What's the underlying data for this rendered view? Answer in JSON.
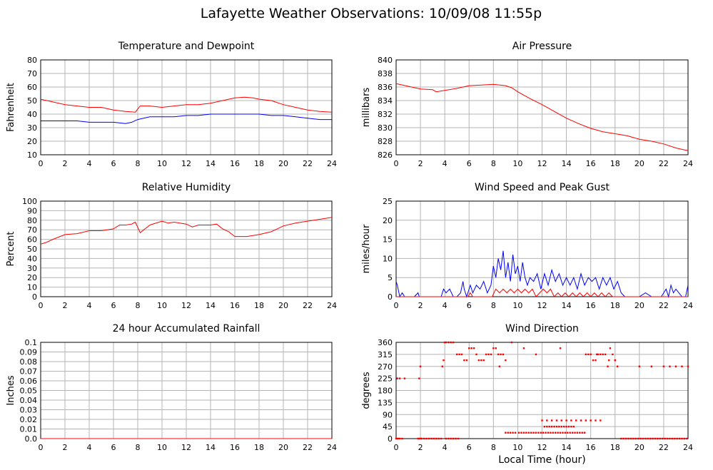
{
  "page": {
    "title": "Lafayette Weather Observations: 10/09/08 11:55p"
  },
  "colors": {
    "red": "#ff0000",
    "blue": "#0000ff",
    "grid": "#b4b4b4",
    "axis": "#000000"
  },
  "chart_data": [
    {
      "id": "temp",
      "type": "line",
      "title": "Temperature and Dewpoint",
      "xlabel": "",
      "ylabel": "Fahrenheit",
      "xlim": [
        0,
        24
      ],
      "ylim": [
        10,
        80
      ],
      "xticks": [
        0,
        2,
        4,
        6,
        8,
        10,
        12,
        14,
        16,
        18,
        20,
        22,
        24
      ],
      "yticks": [
        10,
        20,
        30,
        40,
        50,
        60,
        70,
        80
      ],
      "ytick_labels": [
        "10",
        "20",
        "30",
        "40",
        "50",
        "60",
        "70",
        "80"
      ],
      "grid": true,
      "series": [
        {
          "color": "#ff0000",
          "x": [
            0,
            1,
            2,
            3,
            4,
            5,
            6,
            7,
            7.8,
            8.2,
            9,
            10,
            11,
            12,
            13,
            14,
            15,
            16,
            16.8,
            17.5,
            18,
            19,
            20,
            21,
            22,
            23,
            24
          ],
          "y": [
            51,
            49,
            47,
            46,
            45,
            45,
            43,
            42,
            41.5,
            46,
            46,
            45,
            46,
            47,
            47,
            48,
            50,
            52,
            52.5,
            52,
            51,
            50,
            47,
            45,
            43,
            42,
            41.5
          ]
        },
        {
          "color": "#0000ff",
          "x": [
            0,
            1,
            2,
            3,
            4,
            5,
            6,
            7,
            7.5,
            8,
            9,
            10,
            11,
            12,
            13,
            14,
            15,
            16,
            17,
            18,
            19,
            20,
            21,
            22,
            23,
            24
          ],
          "y": [
            35,
            35,
            35,
            35,
            34,
            34,
            34,
            33,
            34,
            36,
            38,
            38,
            38,
            39,
            39,
            40,
            40,
            40,
            40,
            40,
            39,
            39,
            38,
            37,
            36,
            36
          ]
        }
      ]
    },
    {
      "id": "pressure",
      "type": "line",
      "title": "Air Pressure",
      "xlabel": "",
      "ylabel": "millibars",
      "xlim": [
        0,
        24
      ],
      "ylim": [
        826,
        840
      ],
      "xticks": [
        0,
        2,
        4,
        6,
        8,
        10,
        12,
        14,
        16,
        18,
        20,
        22,
        24
      ],
      "yticks": [
        826,
        828,
        830,
        832,
        834,
        836,
        838,
        840
      ],
      "ytick_labels": [
        "826",
        "828",
        "830",
        "832",
        "834",
        "836",
        "838",
        "840"
      ],
      "grid": true,
      "series": [
        {
          "color": "#ff0000",
          "x": [
            0,
            1,
            2,
            3,
            3.3,
            4,
            5,
            6,
            7,
            8,
            9,
            9.5,
            10,
            11,
            12,
            13,
            14,
            15,
            16,
            17,
            18,
            19,
            20,
            21,
            22,
            23,
            24
          ],
          "y": [
            836.5,
            836.1,
            835.7,
            835.6,
            835.3,
            835.5,
            835.8,
            836.2,
            836.3,
            836.4,
            836.2,
            835.9,
            835.3,
            834.3,
            833.4,
            832.4,
            831.4,
            830.6,
            829.9,
            829.4,
            829.1,
            828.8,
            828.3,
            828.0,
            827.6,
            827.0,
            826.6
          ]
        }
      ]
    },
    {
      "id": "humidity",
      "type": "line",
      "title": "Relative Humidity",
      "xlabel": "",
      "ylabel": "Percent",
      "xlim": [
        0,
        24
      ],
      "ylim": [
        0,
        100
      ],
      "xticks": [
        0,
        2,
        4,
        6,
        8,
        10,
        12,
        14,
        16,
        18,
        20,
        22,
        24
      ],
      "yticks": [
        0,
        10,
        20,
        30,
        40,
        50,
        60,
        70,
        80,
        90,
        100
      ],
      "ytick_labels": [
        "0",
        "10",
        "20",
        "30",
        "40",
        "50",
        "60",
        "70",
        "80",
        "90",
        "100"
      ],
      "grid": true,
      "series": [
        {
          "color": "#ff0000",
          "x": [
            0,
            0.5,
            1,
            2,
            3,
            4,
            5,
            6,
            6.5,
            7,
            7.5,
            7.8,
            8.2,
            8.6,
            9,
            10,
            10.5,
            11,
            12,
            12.5,
            13,
            14,
            14.5,
            15,
            15.5,
            16,
            17,
            18,
            19,
            20,
            21,
            22,
            23,
            24
          ],
          "y": [
            55,
            57,
            60,
            65,
            66,
            69,
            69,
            71,
            75,
            75,
            76,
            78,
            67,
            71,
            75,
            79,
            77,
            78,
            76,
            73,
            75,
            75,
            76,
            71,
            68,
            63,
            63,
            65,
            68,
            74,
            77,
            79,
            81,
            83
          ]
        }
      ]
    },
    {
      "id": "wind",
      "type": "line",
      "title": "Wind Speed and Peak Gust",
      "xlabel": "",
      "ylabel": "miles/hour",
      "xlim": [
        0,
        24
      ],
      "ylim": [
        0,
        25
      ],
      "xticks": [
        0,
        2,
        4,
        6,
        8,
        10,
        12,
        14,
        16,
        18,
        20,
        22,
        24
      ],
      "yticks": [
        0,
        5,
        10,
        15,
        20,
        25
      ],
      "ytick_labels": [
        "0",
        "5",
        "10",
        "15",
        "20",
        "25"
      ],
      "grid": true,
      "series": [
        {
          "color": "#0000ff",
          "x": [
            0,
            0.1,
            0.3,
            0.5,
            0.7,
            1,
            1.5,
            1.8,
            1.9,
            2,
            3,
            3.7,
            3.9,
            4.1,
            4.4,
            4.7,
            5,
            5.3,
            5.5,
            5.6,
            5.8,
            6.1,
            6.3,
            6.6,
            6.9,
            7.2,
            7.5,
            7.8,
            8,
            8.2,
            8.4,
            8.6,
            8.8,
            9,
            9.2,
            9.4,
            9.6,
            9.8,
            10,
            10.2,
            10.4,
            10.6,
            10.8,
            11,
            11.3,
            11.6,
            11.9,
            12.2,
            12.5,
            12.8,
            13.1,
            13.4,
            13.7,
            14,
            14.3,
            14.6,
            14.9,
            15.2,
            15.5,
            15.8,
            16.1,
            16.4,
            16.7,
            17,
            17.3,
            17.6,
            17.9,
            18.2,
            18.5,
            18.8,
            19,
            20,
            20.5,
            21,
            21.5,
            21.8,
            22,
            22.2,
            22.4,
            22.6,
            22.8,
            23,
            23.5,
            23.8,
            24
          ],
          "y": [
            4,
            3,
            0,
            1,
            0,
            0,
            0,
            1,
            0,
            0,
            0,
            0,
            2,
            1,
            2,
            0,
            0,
            1,
            4,
            2,
            0,
            3,
            1,
            3,
            2,
            4,
            1,
            3,
            8,
            5,
            10,
            7,
            12,
            5,
            9,
            4,
            11,
            6,
            8,
            4,
            9,
            5,
            3,
            5,
            4,
            6,
            2,
            6,
            3,
            7,
            4,
            6,
            3,
            5,
            3,
            5,
            2,
            6,
            3,
            5,
            4,
            5,
            2,
            5,
            3,
            5,
            2,
            4,
            1,
            0,
            0,
            0,
            1,
            0,
            0,
            0,
            1,
            2,
            0,
            3,
            1,
            2,
            0,
            0,
            3
          ]
        },
        {
          "color": "#ff0000",
          "x": [
            0,
            5.9,
            6.1,
            6.3,
            7.9,
            8.2,
            8.5,
            8.8,
            9.1,
            9.4,
            9.7,
            10,
            10.3,
            10.6,
            10.9,
            11.2,
            11.5,
            11.8,
            12.1,
            12.4,
            12.7,
            13,
            13.3,
            13.6,
            13.9,
            14.2,
            14.5,
            14.8,
            15.1,
            15.4,
            15.7,
            16,
            16.3,
            16.6,
            16.9,
            17.2,
            17.5,
            17.8,
            18,
            24
          ],
          "y": [
            0,
            0,
            1,
            0,
            0,
            2,
            1,
            2,
            1,
            2,
            1,
            2,
            1,
            2,
            1,
            2,
            0,
            1,
            2,
            1,
            2,
            0,
            1,
            0,
            1,
            0,
            1,
            0,
            1,
            0,
            1,
            0,
            1,
            0,
            1,
            0,
            1,
            0,
            0,
            0
          ]
        }
      ]
    },
    {
      "id": "rain",
      "type": "line",
      "title": "24 hour Accumulated Rainfall",
      "xlabel": "",
      "ylabel": "Inches",
      "xlim": [
        0,
        24
      ],
      "ylim": [
        0,
        0.1
      ],
      "xticks": [
        0,
        2,
        4,
        6,
        8,
        10,
        12,
        14,
        16,
        18,
        20,
        22,
        24
      ],
      "yticks": [
        0,
        0.01,
        0.02,
        0.03,
        0.04,
        0.05,
        0.06,
        0.07,
        0.08,
        0.09,
        0.1
      ],
      "ytick_labels": [
        "0.0",
        "0.01",
        "0.02",
        "0.03",
        "0.04",
        "0.05",
        "0.06",
        "0.07",
        "0.08",
        "0.09",
        "0.1"
      ],
      "grid": true,
      "series": [
        {
          "color": "#ff0000",
          "x": [
            0,
            24
          ],
          "y": [
            0,
            0
          ]
        }
      ]
    },
    {
      "id": "direction",
      "type": "scatter",
      "title": "Wind Direction",
      "xlabel": "Local Time (hour)",
      "ylabel": "degrees",
      "xlim": [
        0,
        24
      ],
      "ylim": [
        0,
        360
      ],
      "xticks": [
        0,
        2,
        4,
        6,
        8,
        10,
        12,
        14,
        16,
        18,
        20,
        22,
        24
      ],
      "yticks": [
        0,
        45,
        90,
        135,
        180,
        225,
        270,
        315,
        360
      ],
      "ytick_labels": [
        "0",
        "45",
        "90",
        "135",
        "180",
        "225",
        "270",
        "315",
        "360"
      ],
      "grid": true,
      "series": [
        {
          "color": "#ff0000",
          "x": [
            0,
            0.1,
            0.2,
            0.3,
            0.5,
            1.8,
            1.9,
            2,
            2.1,
            2.3,
            2.5,
            2.7,
            2.9,
            3.1,
            3.3,
            3.5,
            3.7,
            4.1,
            4.3,
            4.5,
            4.7,
            4.9,
            5.1,
            0.1,
            0.3,
            0.7,
            1.9,
            2,
            3.8,
            3.9,
            4,
            4.1,
            4.3,
            4.5,
            4.7,
            5,
            5.2,
            5.4,
            5.6,
            5.8,
            6,
            6.2,
            6.4,
            6.6,
            6.8,
            7,
            7.2,
            7.4,
            7.6,
            7.8,
            8,
            8.2,
            8.4,
            8.6,
            8.8,
            9,
            9.2,
            9.4,
            9.6,
            9.8,
            10.1,
            10.3,
            10.5,
            10.7,
            10.9,
            11.1,
            11.3,
            11.5,
            11.7,
            11.9,
            12.1,
            12.3,
            12.5,
            12.7,
            12.9,
            13.1,
            13.3,
            13.5,
            13.7,
            13.9,
            14.1,
            14.3,
            14.5,
            14.7,
            14.9,
            15.1,
            15.3,
            15.5,
            12.2,
            12.4,
            12.6,
            12.8,
            13,
            13.2,
            13.4,
            13.6,
            13.8,
            14,
            14.2,
            14.4,
            14.6,
            12,
            12.4,
            12.8,
            13.2,
            13.6,
            14,
            14.4,
            14.8,
            15.2,
            15.6,
            16,
            16.4,
            16.8,
            15.6,
            15.8,
            16,
            16.2,
            16.4,
            16.6,
            16.8,
            17,
            17.2,
            17.4,
            17.6,
            17.8,
            18,
            18.2,
            18.5,
            18.7,
            18.9,
            19.1,
            19.3,
            19.5,
            19.7,
            19.9,
            20.1,
            20.3,
            20.5,
            20.7,
            20.9,
            21.1,
            21.3,
            21.5,
            21.7,
            21.9,
            22.1,
            22.3,
            22.5,
            22.7,
            22.9,
            23.1,
            23.3,
            23.5,
            23.7,
            23.9,
            20,
            21,
            22,
            22.5,
            23,
            23.5,
            24,
            8.5,
            9,
            9.5,
            10.5,
            11.5,
            13.5,
            16.5,
            17.5,
            18
          ],
          "y": [
            0,
            0,
            0,
            0,
            0,
            0,
            0,
            0,
            0,
            0,
            0,
            0,
            0,
            0,
            0,
            0,
            0,
            0,
            0,
            0,
            0,
            0,
            0,
            225,
            225,
            225,
            225,
            270,
            270,
            293,
            360,
            360,
            360,
            360,
            360,
            315,
            315,
            315,
            293,
            293,
            338,
            338,
            338,
            315,
            293,
            293,
            293,
            315,
            315,
            315,
            338,
            338,
            315,
            315,
            315,
            22,
            22,
            22,
            22,
            22,
            22,
            22,
            22,
            22,
            22,
            22,
            22,
            22,
            22,
            22,
            22,
            22,
            22,
            22,
            22,
            22,
            22,
            22,
            22,
            22,
            22,
            22,
            22,
            22,
            22,
            22,
            22,
            22,
            45,
            45,
            45,
            45,
            45,
            45,
            45,
            45,
            45,
            45,
            45,
            45,
            45,
            68,
            68,
            68,
            68,
            68,
            68,
            68,
            68,
            68,
            68,
            68,
            68,
            68,
            315,
            315,
            315,
            293,
            293,
            315,
            315,
            315,
            315,
            270,
            338,
            315,
            293,
            270,
            0,
            0,
            0,
            0,
            0,
            0,
            0,
            0,
            0,
            0,
            0,
            0,
            0,
            0,
            0,
            0,
            0,
            0,
            0,
            0,
            0,
            0,
            0,
            0,
            0,
            0,
            0,
            0,
            270,
            270,
            270,
            270,
            270,
            270,
            270,
            270,
            293,
            360,
            338,
            315,
            338,
            315,
            293,
            293
          ]
        }
      ]
    }
  ]
}
